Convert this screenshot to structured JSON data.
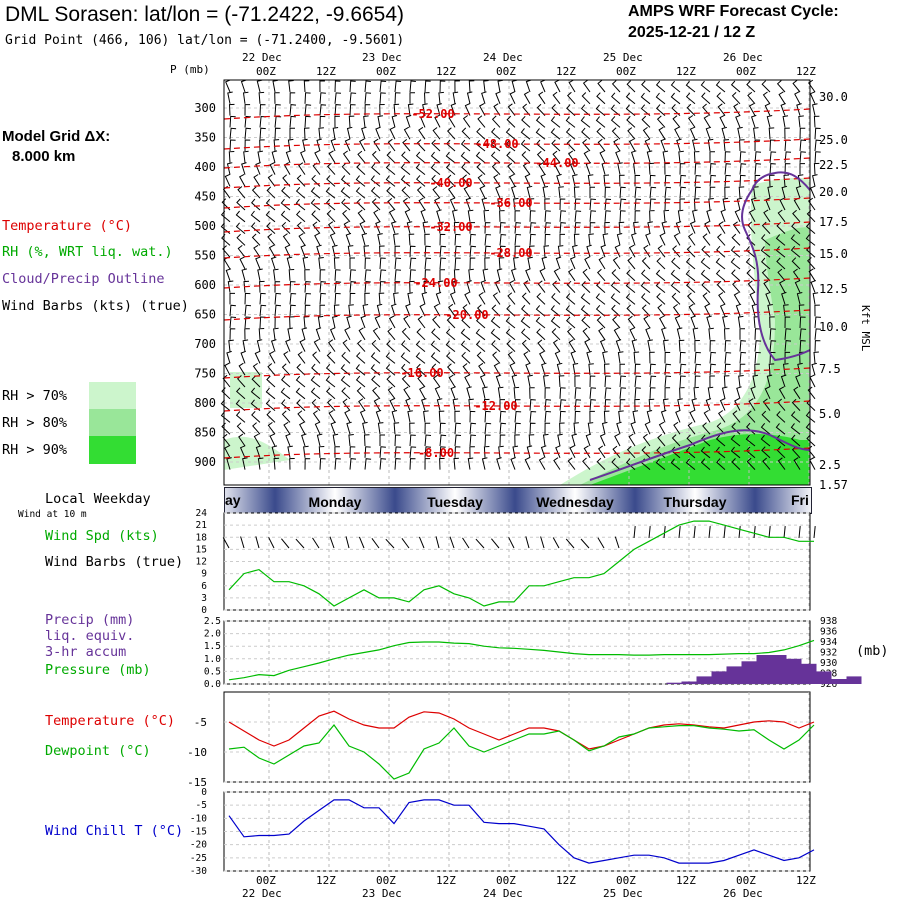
{
  "header": {
    "title": "DML Sorasen:  lat/lon = (-71.2422, -9.6654)",
    "grid_point": "Grid Point (466, 106) lat/lon = (-71.2400, -9.5601)",
    "cycle_line1": "AMPS WRF Forecast Cycle:",
    "cycle_line2": "2025-12-21 / 12  Z"
  },
  "time_axis": {
    "ticks": [
      "00Z",
      "12Z",
      "00Z",
      "12Z",
      "00Z",
      "12Z",
      "00Z",
      "12Z",
      "00Z",
      "12Z"
    ],
    "dates": [
      "22 Dec",
      "23 Dec",
      "24 Dec",
      "25 Dec",
      "26 Dec"
    ]
  },
  "left_labels": {
    "p_unit": "P (mb)",
    "model_grid_line1": "Model Grid ΔX:",
    "model_grid_line2": "8.000 km",
    "temperature": "Temperature (°C)",
    "rh": "RH (%, WRT liq. wat.)",
    "cloud": "Cloud/Precip Outline",
    "wind_barbs": "Wind Barbs (kts) (true)",
    "rh70": "RH > 70%",
    "rh80": "RH > 80%",
    "rh90": "RH > 90%",
    "local_weekday": "Local Weekday",
    "wind_at": "Wind at 10 m",
    "wind_spd": "Wind Spd (kts)",
    "wind_barbs2": "Wind Barbs (true)",
    "precip1": "Precip (mm)",
    "precip2": "liq. equiv.",
    "precip3": "3-hr accum",
    "pressure": "Pressure (mb)",
    "pressure_unit": "(mb)",
    "temp2": "Temperature (°C)",
    "dewpoint": "Dewpoint (°C)",
    "windchill": "Wind Chill T (°C)",
    "kft": "Kft MSL"
  },
  "colors": {
    "temperature": "#dd0000",
    "rh70": "#ccf5cc",
    "rh80": "#99e699",
    "rh90": "#33dd33",
    "cloud": "#663399",
    "green_line": "#00bb00",
    "windchill": "#0000cc",
    "precip": "#663399",
    "weekday_dark": "#3a4a8c",
    "weekday_light": "#ffffff"
  },
  "weekday_bar": {
    "days": [
      "ay",
      "Monday",
      "Tuesday",
      "Wednesday",
      "Thursday",
      "Fri"
    ]
  },
  "chart_data": [
    {
      "type": "contour",
      "name": "sounding",
      "pressure_levels": [
        300,
        350,
        400,
        450,
        500,
        550,
        600,
        650,
        700,
        750,
        800,
        850,
        900
      ],
      "height_kft": [
        "30.0",
        "25.0",
        "22.5",
        "20.0",
        "17.5",
        "15.0",
        "12.5",
        "10.0",
        "7.5",
        "5.0",
        "2.5",
        "1.57"
      ],
      "height_kft_values": [
        30.0,
        25.0,
        22.5,
        20.0,
        17.5,
        15.0,
        12.5,
        10.0,
        7.5,
        5.0,
        2.5,
        1.57
      ],
      "temperature_contours": [
        "-52.00",
        "-48.00",
        "-44.00",
        "-40.00",
        "-36.00",
        "-32.00",
        "-28.00",
        "-24.00",
        "-20.00",
        "-16.00",
        "-12.00",
        "-8.00"
      ],
      "temperature_contour_values": [
        -52,
        -48,
        -44,
        -40,
        -36,
        -32,
        -28,
        -24,
        -20,
        -16,
        -12,
        -8
      ],
      "rh_thresholds": [
        70,
        80,
        90
      ]
    },
    {
      "type": "line",
      "name": "wind_speed",
      "ylim": [
        0,
        24
      ],
      "yticks": [
        "0",
        "3",
        "6",
        "9",
        "12",
        "15",
        "18",
        "21",
        "24"
      ],
      "ytick_values": [
        0,
        3,
        6,
        9,
        12,
        15,
        18,
        21,
        24
      ],
      "x_hours": [
        0,
        3,
        6,
        9,
        12,
        15,
        18,
        21,
        24,
        27,
        30,
        33,
        36,
        39,
        42,
        45,
        48,
        51,
        54,
        57,
        60,
        63,
        66,
        69,
        72,
        75,
        78,
        81,
        84,
        87,
        90,
        93,
        96,
        99,
        102,
        105,
        108,
        111,
        114,
        117
      ],
      "values": [
        5,
        9,
        10,
        7,
        7,
        6,
        4,
        1,
        3,
        5,
        3,
        3,
        2,
        5,
        6,
        4,
        3,
        1,
        2,
        2,
        6,
        6,
        7,
        8,
        8,
        9,
        12,
        15,
        17,
        19,
        21,
        22,
        22,
        21,
        20,
        19,
        18,
        18,
        17,
        17
      ]
    },
    {
      "type": "bar+line",
      "name": "precip_pressure",
      "precip_ylim": [
        0,
        2.5
      ],
      "precip_yticks": [
        "0.0",
        "0.5",
        "1.0",
        "1.5",
        "2.0",
        "2.5"
      ],
      "precip_ytick_values": [
        0,
        0.5,
        1.0,
        1.5,
        2.0,
        2.5
      ],
      "pressure_ylim": [
        926,
        938
      ],
      "pressure_yticks": [
        "926",
        "928",
        "930",
        "932",
        "934",
        "936",
        "938"
      ],
      "pressure_ytick_values": [
        926,
        928,
        930,
        932,
        934,
        936,
        938
      ],
      "precip_x_hours": [
        81,
        84,
        87,
        90,
        93,
        96,
        99,
        102,
        105,
        108,
        111,
        114,
        117
      ],
      "precip_values": [
        0.05,
        0.1,
        0.3,
        0.5,
        0.7,
        0.9,
        1.15,
        1.15,
        1.0,
        0.8,
        0.5,
        0.2,
        0.3
      ],
      "x_hours": [
        0,
        3,
        6,
        9,
        12,
        15,
        18,
        21,
        24,
        27,
        30,
        33,
        36,
        39,
        42,
        45,
        48,
        51,
        54,
        57,
        60,
        63,
        66,
        69,
        72,
        75,
        78,
        81,
        84,
        87,
        90,
        93,
        96,
        99,
        102,
        105,
        108,
        111,
        114,
        117
      ],
      "pressure": [
        926.8,
        927.2,
        927.8,
        927.6,
        928.6,
        929.3,
        930.0,
        930.8,
        931.5,
        932.0,
        932.5,
        933.3,
        933.9,
        934.0,
        934.0,
        933.8,
        933.7,
        933.2,
        932.9,
        932.8,
        932.6,
        932.4,
        932.1,
        931.8,
        931.6,
        931.6,
        931.6,
        931.5,
        931.5,
        931.6,
        931.6,
        931.6,
        931.6,
        931.7,
        931.8,
        931.8,
        932.0,
        932.5,
        933.3,
        934.3
      ]
    },
    {
      "type": "line",
      "name": "temperature_dewpoint",
      "ylim": [
        -15,
        0
      ],
      "yticks": [
        "-5",
        "-10",
        "-15"
      ],
      "ytick_values": [
        -5,
        -10,
        -15
      ],
      "x_hours": [
        0,
        3,
        6,
        9,
        12,
        15,
        18,
        21,
        24,
        27,
        30,
        33,
        36,
        39,
        42,
        45,
        48,
        51,
        54,
        57,
        60,
        63,
        66,
        69,
        72,
        75,
        78,
        81,
        84,
        87,
        90,
        93,
        96,
        99,
        102,
        105,
        108,
        111,
        114,
        117
      ],
      "temperature": [
        -5.0,
        -6.5,
        -8.0,
        -9.0,
        -8.0,
        -6.0,
        -4.0,
        -3.2,
        -4.5,
        -5.5,
        -6.0,
        -6.0,
        -4.2,
        -3.3,
        -3.5,
        -4.5,
        -6.0,
        -7.0,
        -8.0,
        -7.0,
        -6.0,
        -6.0,
        -6.5,
        -8.0,
        -9.5,
        -9.0,
        -8.0,
        -7.0,
        -6.0,
        -5.5,
        -5.3,
        -5.5,
        -5.8,
        -6.0,
        -5.5,
        -5.0,
        -4.8,
        -5.0,
        -6.0,
        -5.0
      ],
      "dewpoint": [
        -9.5,
        -9.2,
        -11.0,
        -12.0,
        -10.5,
        -9.0,
        -8.5,
        -5.5,
        -9.0,
        -10.0,
        -12.0,
        -14.5,
        -13.5,
        -9.5,
        -8.5,
        -6.0,
        -9.0,
        -10.0,
        -9.0,
        -8.0,
        -7.0,
        -7.0,
        -6.5,
        -8.0,
        -9.8,
        -9.0,
        -7.5,
        -7.0,
        -6.0,
        -5.8,
        -5.6,
        -5.6,
        -6.0,
        -6.2,
        -6.5,
        -6.3,
        -8.0,
        -9.5,
        -8.0,
        -5.5
      ]
    },
    {
      "type": "line",
      "name": "wind_chill",
      "ylim": [
        -30,
        0
      ],
      "yticks": [
        "0",
        "-5",
        "-10",
        "-15",
        "-20",
        "-25",
        "-30"
      ],
      "ytick_values": [
        0,
        -5,
        -10,
        -15,
        -20,
        -25,
        -30
      ],
      "x_hours": [
        0,
        3,
        6,
        9,
        12,
        15,
        18,
        21,
        24,
        27,
        30,
        33,
        36,
        39,
        42,
        45,
        48,
        51,
        54,
        57,
        60,
        63,
        66,
        69,
        72,
        75,
        78,
        81,
        84,
        87,
        90,
        93,
        96,
        99,
        102,
        105,
        108,
        111,
        114,
        117
      ],
      "values": [
        -9,
        -17,
        -16.5,
        -16.5,
        -16,
        -11,
        -7,
        -3,
        -3,
        -6,
        -6,
        -12,
        -4,
        -3,
        -3,
        -5,
        -5,
        -11.5,
        -12,
        -12,
        -13,
        -14,
        -20,
        -25,
        -27,
        -26,
        -25,
        -24,
        -24,
        -25,
        -27,
        -27,
        -27,
        -26,
        -24,
        -22,
        -24,
        -26,
        -25,
        -22
      ]
    }
  ]
}
